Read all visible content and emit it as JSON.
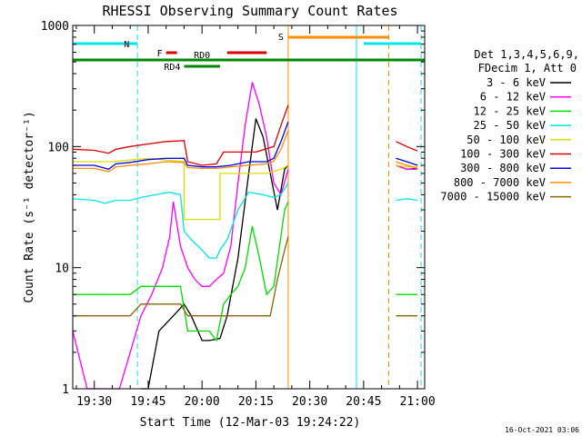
{
  "chart_data": {
    "type": "line",
    "title": "RHESSI Observing Summary Count Rates",
    "xlabel": "Start Time (12-Mar-03 19:24:22)",
    "ylabel": "Count Rate (s⁻¹ detector⁻¹)",
    "ylim": [
      1,
      1000
    ],
    "yscale": "log",
    "xlim": [
      "19:24",
      "21:02"
    ],
    "x_ticks": [
      "19:30",
      "19:45",
      "20:00",
      "20:15",
      "20:30",
      "20:45",
      "21:00"
    ],
    "y_ticks": [
      "1",
      "10",
      "100",
      "1000"
    ],
    "timestamp": "16-Oct-2021 03:06",
    "legend_header": [
      "Det 1,3,4,5,6,9,",
      "FDecim 1, Att 0"
    ],
    "legend_position": "right",
    "flags": [
      {
        "label": "N",
        "start": "19:24",
        "end": "19:42",
        "color": "#00e5ee"
      },
      {
        "label": "N",
        "start": "20:45",
        "end": "21:01",
        "color": "#00e5ee"
      },
      {
        "label": "S",
        "start": "20:24",
        "end": "20:52",
        "color": "#ff8c00"
      },
      {
        "label": "F",
        "start": "19:50",
        "end": "19:53",
        "color": "#dd0000"
      },
      {
        "label": "F",
        "start": "20:07",
        "end": "20:18",
        "color": "#dd0000"
      },
      {
        "label": "RD0",
        "start": "19:24",
        "end": "21:02",
        "color": "#008800"
      },
      {
        "label": "RD4",
        "start": "19:55",
        "end": "20:05",
        "color": "#008800"
      }
    ],
    "vlines": [
      {
        "time": "19:42",
        "color": "#00e5ee",
        "style": "dashed"
      },
      {
        "time": "20:24",
        "color": "#ff8c00",
        "style": "solid"
      },
      {
        "time": "20:43",
        "color": "#00e5ee",
        "style": "solid"
      },
      {
        "time": "20:52",
        "color": "#ff8c00",
        "style": "dashed"
      },
      {
        "time": "21:01",
        "color": "#00e5ee",
        "style": "dashed"
      }
    ],
    "series": [
      {
        "name": "3 - 6 keV",
        "color": "#000000",
        "points": [
          [
            "19:43",
            1
          ],
          [
            "19:45",
            1
          ],
          [
            "19:48",
            3
          ],
          [
            "19:52",
            4
          ],
          [
            "19:55",
            5
          ],
          [
            "19:57",
            4
          ],
          [
            "20:00",
            2.5
          ],
          [
            "20:02",
            2.5
          ],
          [
            "20:05",
            2.6
          ],
          [
            "20:07",
            4
          ],
          [
            "20:10",
            12
          ],
          [
            "20:13",
            60
          ],
          [
            "20:15",
            170
          ],
          [
            "20:17",
            120
          ],
          [
            "20:19",
            60
          ],
          [
            "20:21",
            30
          ],
          [
            "20:23",
            65
          ],
          [
            "20:24",
            70
          ],
          [
            "20:54",
            70
          ],
          [
            "20:57",
            65
          ],
          [
            "21:00",
            66
          ]
        ]
      },
      {
        "name": "6 - 12 keV",
        "color": "#ff00ff",
        "points": [
          [
            "19:24",
            3
          ],
          [
            "19:28",
            1
          ],
          [
            "19:31",
            1
          ],
          [
            "19:34",
            1
          ],
          [
            "19:37",
            1
          ],
          [
            "19:40",
            2
          ],
          [
            "19:43",
            4
          ],
          [
            "19:46",
            6
          ],
          [
            "19:49",
            10
          ],
          [
            "19:51",
            18
          ],
          [
            "19:52",
            35
          ],
          [
            "19:54",
            15
          ],
          [
            "19:56",
            10
          ],
          [
            "19:58",
            8
          ],
          [
            "20:00",
            7
          ],
          [
            "20:02",
            7
          ],
          [
            "20:04",
            8
          ],
          [
            "20:06",
            9
          ],
          [
            "20:08",
            15
          ],
          [
            "20:10",
            50
          ],
          [
            "20:12",
            150
          ],
          [
            "20:14",
            340
          ],
          [
            "20:16",
            220
          ],
          [
            "20:18",
            120
          ],
          [
            "20:20",
            50
          ],
          [
            "20:22",
            40
          ],
          [
            "20:24",
            65
          ],
          [
            "20:54",
            70
          ],
          [
            "20:57",
            65
          ],
          [
            "21:00",
            65
          ]
        ]
      },
      {
        "name": "12 - 25 keV",
        "color": "#00dd00",
        "points": [
          [
            "19:24",
            6
          ],
          [
            "19:30",
            6
          ],
          [
            "19:36",
            6
          ],
          [
            "19:40",
            6
          ],
          [
            "19:43",
            7
          ],
          [
            "19:47",
            7
          ],
          [
            "19:51",
            7
          ],
          [
            "19:54",
            7
          ],
          [
            "19:56",
            3
          ],
          [
            "19:58",
            3
          ],
          [
            "20:00",
            3
          ],
          [
            "20:02",
            3
          ],
          [
            "20:04",
            2.5
          ],
          [
            "20:06",
            5
          ],
          [
            "20:08",
            6
          ],
          [
            "20:10",
            7
          ],
          [
            "20:12",
            10
          ],
          [
            "20:14",
            22
          ],
          [
            "20:16",
            12
          ],
          [
            "20:18",
            6
          ],
          [
            "20:20",
            7
          ],
          [
            "20:23",
            30
          ],
          [
            "20:24",
            35
          ],
          [
            "20:54",
            6
          ],
          [
            "20:57",
            6
          ],
          [
            "21:00",
            6
          ]
        ]
      },
      {
        "name": "25 - 50 keV",
        "color": "#00e5ee",
        "points": [
          [
            "19:24",
            37
          ],
          [
            "19:30",
            36
          ],
          [
            "19:33",
            34
          ],
          [
            "19:36",
            36
          ],
          [
            "19:40",
            36
          ],
          [
            "19:43",
            38
          ],
          [
            "19:47",
            40
          ],
          [
            "19:51",
            42
          ],
          [
            "19:54",
            40
          ],
          [
            "19:55",
            20
          ],
          [
            "19:57",
            17
          ],
          [
            "20:00",
            14
          ],
          [
            "20:02",
            12
          ],
          [
            "20:04",
            12
          ],
          [
            "20:05",
            14
          ],
          [
            "20:07",
            17
          ],
          [
            "20:10",
            30
          ],
          [
            "20:13",
            42
          ],
          [
            "20:17",
            40
          ],
          [
            "20:20",
            38
          ],
          [
            "20:22",
            40
          ],
          [
            "20:24",
            50
          ],
          [
            "20:54",
            36
          ],
          [
            "20:57",
            37
          ],
          [
            "21:00",
            36
          ]
        ]
      },
      {
        "name": "50 - 100 keV",
        "color": "#dddd00",
        "points": [
          [
            "19:24",
            75
          ],
          [
            "19:35",
            75
          ],
          [
            "19:45",
            80
          ],
          [
            "19:55",
            75
          ],
          [
            "19:55",
            25
          ],
          [
            "20:05",
            25
          ],
          [
            "20:05",
            60
          ],
          [
            "20:12",
            60
          ],
          [
            "20:18",
            60
          ],
          [
            "20:22",
            65
          ],
          [
            "20:24",
            70
          ],
          [
            "20:54",
            70
          ],
          [
            "20:57",
            68
          ],
          [
            "21:00",
            68
          ]
        ]
      },
      {
        "name": "100 - 300 keV",
        "color": "#dd0000",
        "points": [
          [
            "19:24",
            95
          ],
          [
            "19:30",
            93
          ],
          [
            "19:34",
            88
          ],
          [
            "19:36",
            95
          ],
          [
            "19:40",
            100
          ],
          [
            "19:45",
            105
          ],
          [
            "19:50",
            110
          ],
          [
            "19:55",
            112
          ],
          [
            "19:56",
            75
          ],
          [
            "20:00",
            70
          ],
          [
            "20:04",
            72
          ],
          [
            "20:06",
            90
          ],
          [
            "20:10",
            90
          ],
          [
            "20:15",
            90
          ],
          [
            "20:20",
            100
          ],
          [
            "20:22",
            150
          ],
          [
            "20:24",
            220
          ],
          [
            "20:54",
            110
          ],
          [
            "20:57",
            100
          ],
          [
            "21:00",
            92
          ]
        ]
      },
      {
        "name": "300 - 800 keV",
        "color": "#0000ee",
        "points": [
          [
            "19:24",
            70
          ],
          [
            "19:30",
            70
          ],
          [
            "19:34",
            65
          ],
          [
            "19:36",
            72
          ],
          [
            "19:40",
            74
          ],
          [
            "19:45",
            78
          ],
          [
            "19:50",
            80
          ],
          [
            "19:55",
            80
          ],
          [
            "19:56",
            70
          ],
          [
            "20:00",
            68
          ],
          [
            "20:04",
            68
          ],
          [
            "20:08",
            70
          ],
          [
            "20:13",
            75
          ],
          [
            "20:18",
            75
          ],
          [
            "20:20",
            80
          ],
          [
            "20:22",
            110
          ],
          [
            "20:24",
            160
          ],
          [
            "20:54",
            80
          ],
          [
            "20:57",
            75
          ],
          [
            "21:00",
            70
          ]
        ]
      },
      {
        "name": "800 - 7000 keV",
        "color": "#ff8c00",
        "points": [
          [
            "19:24",
            66
          ],
          [
            "19:30",
            66
          ],
          [
            "19:34",
            62
          ],
          [
            "19:36",
            68
          ],
          [
            "19:40",
            70
          ],
          [
            "19:45",
            72
          ],
          [
            "19:50",
            75
          ],
          [
            "19:55",
            74
          ],
          [
            "19:56",
            67
          ],
          [
            "20:00",
            66
          ],
          [
            "20:04",
            66
          ],
          [
            "20:08",
            68
          ],
          [
            "20:13",
            70
          ],
          [
            "20:18",
            72
          ],
          [
            "20:20",
            76
          ],
          [
            "20:22",
            95
          ],
          [
            "20:24",
            135
          ],
          [
            "20:54",
            75
          ],
          [
            "20:57",
            70
          ],
          [
            "21:00",
            66
          ]
        ]
      },
      {
        "name": "7000 - 15000 keV",
        "color": "#886600",
        "points": [
          [
            "19:24",
            4
          ],
          [
            "19:30",
            4
          ],
          [
            "19:35",
            4
          ],
          [
            "19:40",
            4
          ],
          [
            "19:43",
            5
          ],
          [
            "19:47",
            5
          ],
          [
            "19:51",
            5
          ],
          [
            "19:54",
            5
          ],
          [
            "19:56",
            4
          ],
          [
            "20:00",
            4
          ],
          [
            "20:04",
            4
          ],
          [
            "20:08",
            4
          ],
          [
            "20:12",
            4
          ],
          [
            "20:16",
            4
          ],
          [
            "20:19",
            4
          ],
          [
            "20:21",
            8
          ],
          [
            "20:23",
            14
          ],
          [
            "20:24",
            18
          ],
          [
            "20:54",
            4
          ],
          [
            "20:57",
            4
          ],
          [
            "21:00",
            4
          ]
        ]
      }
    ]
  }
}
